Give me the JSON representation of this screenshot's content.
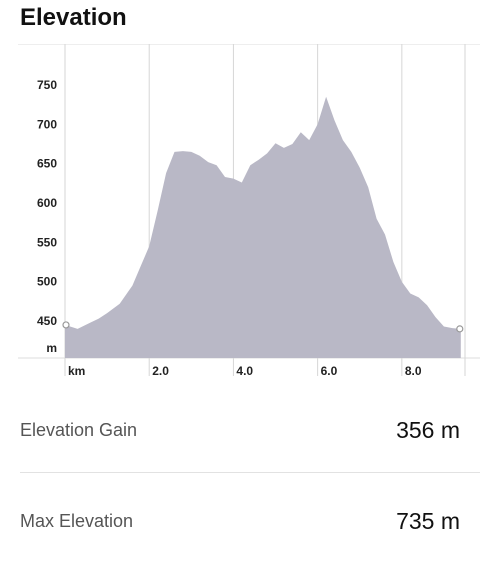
{
  "header": {
    "title": "Elevation"
  },
  "chart_data": {
    "type": "area",
    "title": "",
    "xlabel": "km",
    "ylabel": "m",
    "x_ticks": [
      "2.0",
      "4.0",
      "6.0",
      "8.0"
    ],
    "x_tick_values": [
      2,
      4,
      6,
      8
    ],
    "y_ticks": [
      "450",
      "500",
      "550",
      "600",
      "650",
      "700",
      "750"
    ],
    "y_tick_values": [
      450,
      500,
      550,
      600,
      650,
      700,
      750
    ],
    "xlim": [
      0,
      9.5
    ],
    "ylim": [
      400,
      790
    ],
    "grid": true,
    "fill_color": "#b9b8c6",
    "x": [
      0,
      0.3,
      0.6,
      0.8,
      1.0,
      1.3,
      1.6,
      1.8,
      2.0,
      2.2,
      2.4,
      2.6,
      2.8,
      3.0,
      3.2,
      3.4,
      3.6,
      3.8,
      4.0,
      4.2,
      4.4,
      4.6,
      4.8,
      5.0,
      5.2,
      5.4,
      5.6,
      5.8,
      6.0,
      6.2,
      6.4,
      6.6,
      6.8,
      7.0,
      7.2,
      7.4,
      7.6,
      7.8,
      8.0,
      8.2,
      8.4,
      8.6,
      8.8,
      9.0,
      9.2,
      9.4
    ],
    "values": [
      445,
      440,
      448,
      453,
      460,
      472,
      495,
      520,
      545,
      590,
      638,
      665,
      666,
      665,
      660,
      652,
      648,
      633,
      631,
      626,
      648,
      655,
      663,
      676,
      670,
      675,
      690,
      680,
      700,
      735,
      705,
      680,
      665,
      645,
      620,
      580,
      560,
      525,
      500,
      485,
      480,
      470,
      455,
      443,
      441,
      440
    ],
    "start_marker": 445,
    "end_marker": 440
  },
  "stats": [
    {
      "label": "Elevation Gain",
      "value": "356 m"
    },
    {
      "label": "Max Elevation",
      "value": "735 m"
    }
  ]
}
